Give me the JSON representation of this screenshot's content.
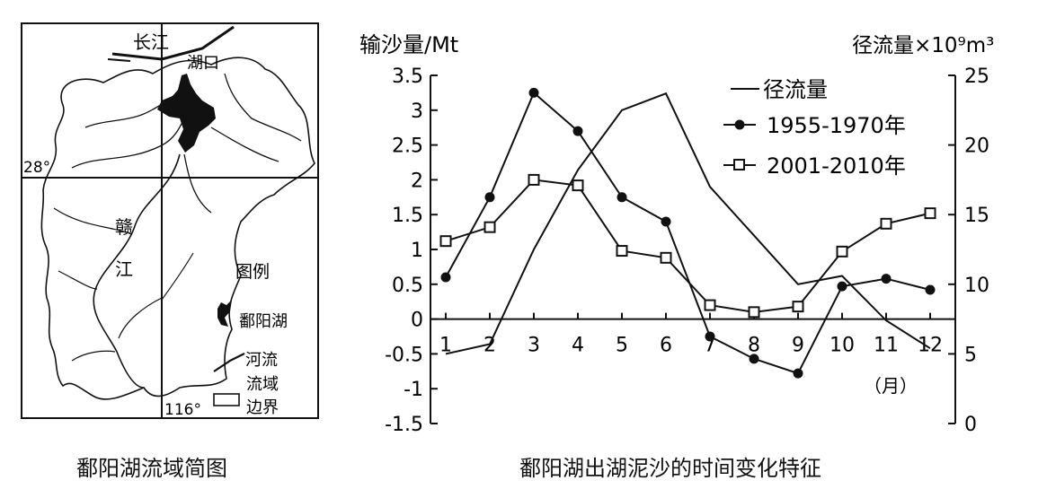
{
  "map": {
    "caption": "鄱阳湖流域简图",
    "labels": {
      "changjiang": "长江",
      "hukou": "湖口",
      "ganjiang_1": "赣",
      "ganjiang_2": "江",
      "lat": "28°",
      "lon": "116°"
    },
    "legend": {
      "title": "图例",
      "lake": "鄱阳湖",
      "river": "河流",
      "boundary_1": "流域",
      "boundary_2": "边界"
    }
  },
  "chart_data": {
    "type": "line",
    "title": "鄱阳湖出湖泥沙的时间变化特征",
    "ylabel_left": "输沙量/Mt",
    "ylabel_right": "径流量×10⁹m³",
    "xlabel": "（月）",
    "categories": [
      "1",
      "2",
      "3",
      "4",
      "5",
      "6",
      "7",
      "8",
      "9",
      "10",
      "11",
      "12"
    ],
    "y_left_ticks": [
      "3.5",
      "3",
      "2.5",
      "2",
      "1.5",
      "1",
      "0.5",
      "0",
      "-0.5",
      "-1",
      "-1.5"
    ],
    "y_left_range": [
      -1.5,
      3.5
    ],
    "y_right_ticks": [
      "25",
      "20",
      "15",
      "10",
      "5",
      "0"
    ],
    "y_right_range": [
      0,
      25
    ],
    "legend_position": "top-right",
    "grid": false,
    "series": [
      {
        "name": "径流量",
        "axis": "right",
        "marker": "none",
        "values": [
          5,
          5.7,
          12.5,
          18.2,
          22.5,
          23.7,
          17,
          13.5,
          10,
          10.6,
          7.4,
          5.4
        ]
      },
      {
        "name": "1955-1970年",
        "axis": "left",
        "marker": "filled-circle",
        "values": [
          0.6,
          1.75,
          3.25,
          2.7,
          1.75,
          1.4,
          -0.25,
          -0.57,
          -0.78,
          0.47,
          0.58,
          0.42
        ]
      },
      {
        "name": "2001-2010年",
        "axis": "left",
        "marker": "open-square",
        "values": [
          1.12,
          1.32,
          2.0,
          1.92,
          0.98,
          0.88,
          0.2,
          0.1,
          0.18,
          0.97,
          1.37,
          1.52
        ]
      }
    ]
  }
}
